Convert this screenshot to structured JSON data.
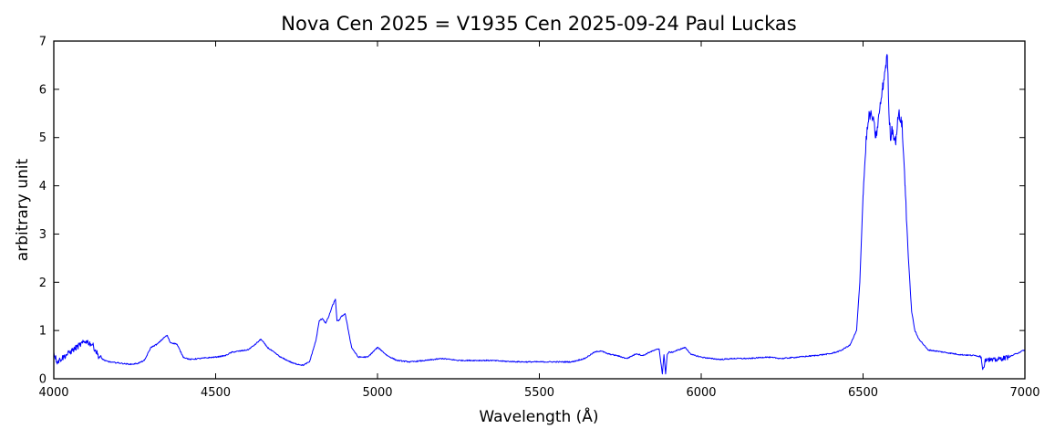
{
  "chart_data": {
    "type": "line",
    "title": "Nova Cen 2025 = V1935 Cen 2025-09-24  Paul Luckas",
    "xlabel": "Wavelength (Å)",
    "ylabel": "arbitrary unit",
    "xlim": [
      4000,
      7000
    ],
    "ylim": [
      0,
      7
    ],
    "x_ticks": [
      "4000",
      "4500",
      "5000",
      "5500",
      "6000",
      "6500",
      "7000"
    ],
    "y_ticks": [
      "0",
      "1",
      "2",
      "3",
      "4",
      "5",
      "6",
      "7"
    ],
    "grid": false,
    "line_color": "#0000ff",
    "series": [
      {
        "x": [
          4000,
          4010,
          4020,
          4040,
          4060,
          4080,
          4100,
          4120,
          4140,
          4160,
          4180,
          4200,
          4220,
          4240,
          4260,
          4280,
          4300,
          4320,
          4340,
          4350,
          4360,
          4380,
          4400,
          4420,
          4450,
          4500,
          4530,
          4550,
          4600,
          4620,
          4640,
          4660,
          4700,
          4740,
          4770,
          4790,
          4810,
          4820,
          4830,
          4840,
          4850,
          4860,
          4870,
          4875,
          4880,
          4890,
          4900,
          4910,
          4920,
          4940,
          4970,
          5000,
          5010,
          5030,
          5060,
          5100,
          5150,
          5200,
          5250,
          5300,
          5350,
          5400,
          5450,
          5500,
          5550,
          5600,
          5640,
          5670,
          5690,
          5710,
          5740,
          5770,
          5800,
          5820,
          5840,
          5860,
          5870,
          5880,
          5885,
          5890,
          5895,
          5900,
          5910,
          5930,
          5950,
          5970,
          6000,
          6030,
          6060,
          6100,
          6150,
          6200,
          6250,
          6300,
          6350,
          6400,
          6430,
          6460,
          6480,
          6490,
          6500,
          6510,
          6520,
          6530,
          6540,
          6550,
          6560,
          6570,
          6575,
          6580,
          6585,
          6590,
          6600,
          6610,
          6620,
          6630,
          6640,
          6650,
          6660,
          6670,
          6700,
          6750,
          6800,
          6850,
          6865,
          6870,
          6880,
          6900,
          6950,
          7000
        ],
        "y": [
          0.55,
          0.35,
          0.4,
          0.5,
          0.6,
          0.7,
          0.78,
          0.7,
          0.45,
          0.37,
          0.34,
          0.33,
          0.31,
          0.3,
          0.32,
          0.38,
          0.65,
          0.72,
          0.85,
          0.9,
          0.75,
          0.72,
          0.45,
          0.4,
          0.42,
          0.45,
          0.48,
          0.55,
          0.6,
          0.7,
          0.82,
          0.65,
          0.45,
          0.32,
          0.28,
          0.35,
          0.8,
          1.2,
          1.25,
          1.15,
          1.3,
          1.5,
          1.65,
          1.2,
          1.2,
          1.3,
          1.35,
          1.0,
          0.65,
          0.45,
          0.45,
          0.65,
          0.6,
          0.48,
          0.38,
          0.35,
          0.38,
          0.42,
          0.38,
          0.38,
          0.38,
          0.36,
          0.35,
          0.35,
          0.35,
          0.35,
          0.42,
          0.55,
          0.58,
          0.52,
          0.48,
          0.42,
          0.52,
          0.48,
          0.55,
          0.6,
          0.62,
          0.1,
          0.5,
          0.1,
          0.5,
          0.55,
          0.55,
          0.6,
          0.65,
          0.5,
          0.45,
          0.42,
          0.4,
          0.42,
          0.42,
          0.45,
          0.42,
          0.45,
          0.48,
          0.52,
          0.58,
          0.7,
          1.0,
          2.0,
          3.8,
          5.0,
          5.5,
          5.4,
          5.0,
          5.5,
          6.0,
          6.5,
          6.7,
          5.5,
          5.0,
          5.2,
          4.9,
          5.5,
          5.3,
          4.0,
          2.5,
          1.4,
          1.0,
          0.85,
          0.6,
          0.55,
          0.5,
          0.48,
          0.45,
          0.2,
          0.42,
          0.38,
          0.45,
          0.6
        ]
      }
    ]
  }
}
